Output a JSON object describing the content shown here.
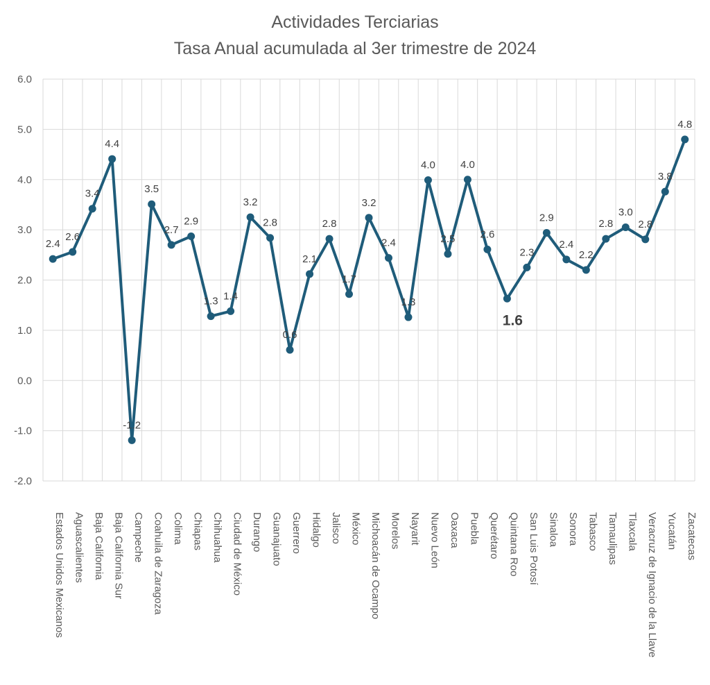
{
  "chart_data": {
    "type": "line",
    "title": "Actividades Terciarias",
    "subtitle": "Tasa Anual acumulada al 3er trimestre de 2024",
    "xlabel": "",
    "ylabel": "",
    "ylim": [
      -2.0,
      6.0
    ],
    "yticks": [
      "-2.0",
      "-1.0",
      "0.0",
      "1.0",
      "2.0",
      "3.0",
      "4.0",
      "5.0",
      "6.0"
    ],
    "grid": true,
    "legend": "none",
    "series_color": "#1F5C7A",
    "categories": [
      "Estados Unidos Mexicanos",
      "Aguascalientes",
      "Baja California",
      "Baja California Sur",
      "Campeche",
      "Coahuila de Zaragoza",
      "Colima",
      "Chiapas",
      "Chihuahua",
      "Ciudad de México",
      "Durango",
      "Guanajuato",
      "Guerrero",
      "Hidalgo",
      "Jalisco",
      "México",
      "Michoacán de Ocampo",
      "Morelos",
      "Nayarit",
      "Nuevo León",
      "Oaxaca",
      "Puebla",
      "Querétaro",
      "Quintana Roo",
      "San Luis Potosí",
      "Sinaloa",
      "Sonora",
      "Tabasco",
      "Tamaulipas",
      "Tlaxcala",
      "Veracruz de Ignacio de la Llave",
      "Yucatán",
      "Zacatecas"
    ],
    "values": [
      2.42,
      2.56,
      3.42,
      4.41,
      -1.19,
      3.51,
      2.7,
      2.87,
      1.28,
      1.38,
      3.25,
      2.84,
      0.61,
      2.12,
      2.82,
      1.72,
      3.24,
      2.44,
      1.26,
      3.99,
      2.52,
      4.0,
      2.61,
      1.63,
      2.25,
      2.94,
      2.41,
      2.2,
      2.82,
      3.05,
      2.81,
      3.76,
      4.8
    ],
    "labels": [
      "2.4",
      "2.6",
      "3.4",
      "4.4",
      "-1.2",
      "3.5",
      "2.7",
      "2.9",
      "1.3",
      "1.4",
      "3.2",
      "2.8",
      "0.6",
      "2.1",
      "2.8",
      "1.7",
      "3.2",
      "2.4",
      "1.3",
      "4.0",
      "2.5",
      "4.0",
      "2.6",
      "1.6",
      "2.3",
      "2.9",
      "2.4",
      "2.2",
      "2.8",
      "3.0",
      "2.8",
      "3.8",
      "4.8"
    ],
    "highlight_index": 23
  }
}
